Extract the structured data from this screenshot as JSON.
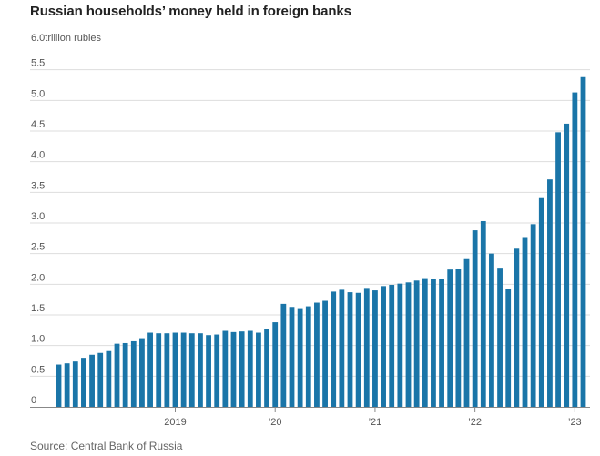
{
  "title": "Russian households’ money held in foreign banks",
  "unit_label": "6.0trillion rubles",
  "source": "Source: Central Bank of Russia",
  "colors": {
    "bar": "#1a75a8",
    "grid": "#dddddd",
    "axis": "#888888"
  },
  "chart_data": {
    "type": "bar",
    "title": "Russian households’ money held in foreign banks",
    "ylabel": "trillion rubles",
    "ylim": [
      0,
      6.0
    ],
    "y_ticks": [
      "0",
      "0.5",
      "1.0",
      "1.5",
      "2.0",
      "2.5",
      "3.0",
      "3.5",
      "4.0",
      "4.5",
      "5.0",
      "5.5"
    ],
    "x_tick_labels": [
      {
        "label": "2019",
        "bar_index": 14
      },
      {
        "label": "’20",
        "bar_index": 26
      },
      {
        "label": "’21",
        "bar_index": 38
      },
      {
        "label": "’22",
        "bar_index": 50
      },
      {
        "label": "’23",
        "bar_index": 62
      }
    ],
    "series": [
      {
        "values": [
          0.69,
          0.71,
          0.74,
          0.8,
          0.85,
          0.88,
          0.91,
          1.03,
          1.04,
          1.07,
          1.12,
          1.21,
          1.2,
          1.2,
          1.21,
          1.21,
          1.2,
          1.2,
          1.17,
          1.18,
          1.24,
          1.22,
          1.23,
          1.24,
          1.21,
          1.27,
          1.38,
          1.68,
          1.63,
          1.61,
          1.64,
          1.7,
          1.73,
          1.88,
          1.91,
          1.87,
          1.86,
          1.94,
          1.9,
          1.97,
          1.99,
          2.01,
          2.03,
          2.06,
          2.1,
          2.09,
          2.09,
          2.24,
          2.25,
          2.41,
          2.88,
          3.03,
          2.5,
          2.27,
          1.92,
          2.58,
          2.77,
          2.98,
          3.42,
          3.71,
          4.48,
          4.62,
          5.13,
          5.38
        ]
      }
    ]
  }
}
